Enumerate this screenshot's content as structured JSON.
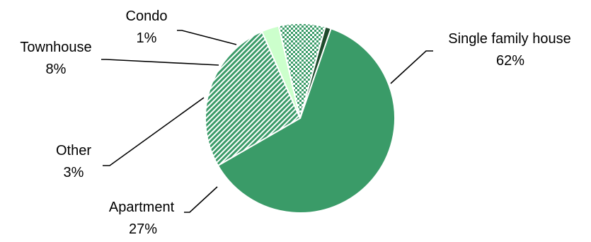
{
  "chart_data": {
    "type": "pie",
    "title": "",
    "start_angle_deg": 19,
    "direction": "clockwise",
    "slices": [
      {
        "label": "Single family house",
        "value": 62,
        "value_label": "62%",
        "color": "#3a9b68",
        "pattern": "solid"
      },
      {
        "label": "Apartment",
        "value": 27,
        "value_label": "27%",
        "color": "#3a9b68",
        "pattern": "diagonal-stripes"
      },
      {
        "label": "Other",
        "value": 3,
        "value_label": "3%",
        "color": "#ccffcc",
        "pattern": "solid"
      },
      {
        "label": "Townhouse",
        "value": 8,
        "value_label": "8%",
        "color": "#3a9b68",
        "pattern": "checker"
      },
      {
        "label": "Condo",
        "value": 1,
        "value_label": "1%",
        "color": "#1f4a2c",
        "pattern": "solid"
      }
    ],
    "legend": "none",
    "label_style": "outside with leader lines"
  }
}
